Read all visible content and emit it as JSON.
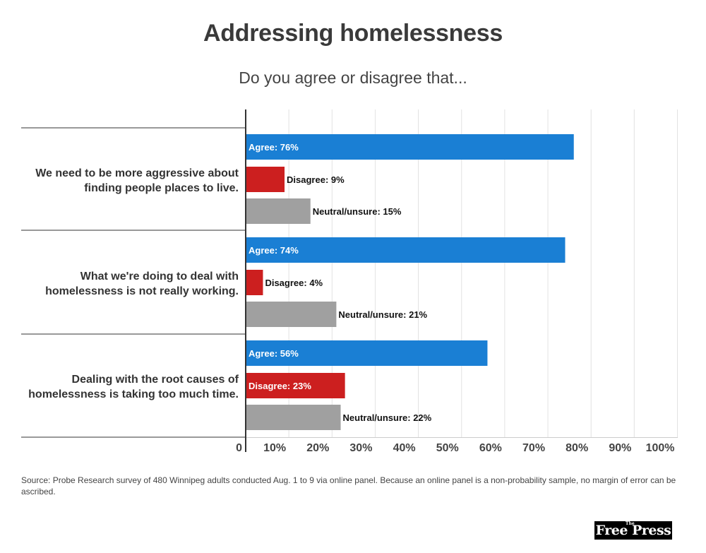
{
  "header": {
    "title": "Addressing homelessness",
    "subtitle": "Do you agree or disagree that..."
  },
  "colors": {
    "agree": "#1a7fd4",
    "disagree": "#cc1f1f",
    "neutral": "#a0a0a0",
    "grid": "#e2e2e2",
    "axis": "#333333",
    "separator": "#333333"
  },
  "chart_data": {
    "type": "bar",
    "orientation": "horizontal",
    "title": "Addressing homelessness",
    "subtitle": "Do you agree or disagree that...",
    "categories": [
      "We need to be more aggressive about finding people places to live.",
      "What we're doing to deal with homelessness is not really working.",
      "Dealing with the root causes of homelessness is taking too much time."
    ],
    "category_lines": [
      [
        "We need to be more aggressive about",
        "finding people places to live."
      ],
      [
        "What we're doing to deal with",
        "homelessness is not really working."
      ],
      [
        "Dealing with the root causes of",
        "homelessness is taking too much time."
      ]
    ],
    "series": [
      {
        "name": "Agree",
        "values": [
          76,
          74,
          56
        ],
        "labels": [
          "Agree: 76%",
          "Agree: 74%",
          "Agree: 56%"
        ]
      },
      {
        "name": "Disagree",
        "values": [
          9,
          4,
          23
        ],
        "labels": [
          "Disagree: 9%",
          "Disagree: 4%",
          "Disagree: 23%"
        ]
      },
      {
        "name": "Neutral/unsure",
        "values": [
          15,
          21,
          22
        ],
        "labels": [
          "Neutral/unsure: 15%",
          "Neutral/unsure: 21%",
          "Neutral/unsure: 22%"
        ]
      }
    ],
    "xlim": [
      0,
      100
    ],
    "xticks": [
      0,
      10,
      20,
      30,
      40,
      50,
      60,
      70,
      80,
      90,
      100
    ],
    "xtick_labels": [
      "0",
      "10%",
      "20%",
      "30%",
      "40%",
      "50%",
      "60%",
      "70%",
      "80%",
      "90%",
      "100%"
    ],
    "grid": true
  },
  "footer": {
    "source": "Source: Probe Research survey of 480 Winnipeg adults conducted Aug. 1 to 9 via online panel. Because an online panel is a non-probability sample, no margin of error can be ascribed.",
    "logo_main": "Free Press",
    "logo_small": "The"
  }
}
